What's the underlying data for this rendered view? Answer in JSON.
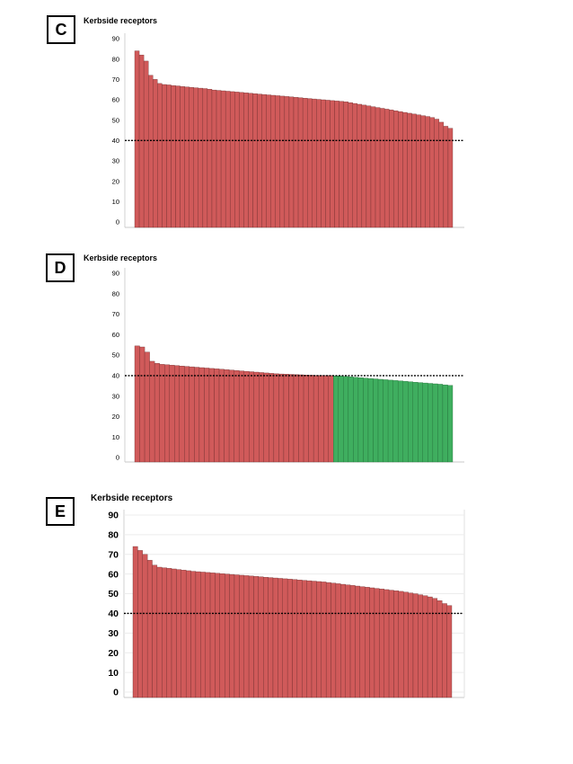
{
  "panels": [
    {
      "letter": "C",
      "title": "Kerbside receptors",
      "chart_data": {
        "type": "bar",
        "ylim": [
          0,
          90
        ],
        "yticks": [
          "90",
          "80",
          "70",
          "60",
          "50",
          "40",
          "30",
          "20",
          "10",
          "0"
        ],
        "threshold": 40,
        "grid": false,
        "colors": {
          "above": "#d05a5a",
          "below": "#3fae5f"
        },
        "values": [
          84,
          82,
          79,
          72,
          70,
          68,
          67.5,
          67.3,
          67,
          66.8,
          66.5,
          66.3,
          66.1,
          65.9,
          65.7,
          65.5,
          65.2,
          64.8,
          64.6,
          64.4,
          64.2,
          64,
          63.8,
          63.6,
          63.4,
          63.2,
          63,
          62.8,
          62.6,
          62.4,
          62.2,
          62,
          61.8,
          61.6,
          61.4,
          61.2,
          61,
          60.8,
          60.6,
          60.4,
          60.2,
          60,
          59.8,
          59.6,
          59.4,
          59.2,
          59,
          58.6,
          58.2,
          57.8,
          57.4,
          57,
          56.6,
          56.2,
          55.8,
          55.4,
          55,
          54.6,
          54.2,
          53.8,
          53.4,
          53,
          52.6,
          52.2,
          51.8,
          51.3,
          50.5,
          49,
          47,
          46
        ]
      }
    },
    {
      "letter": "D",
      "title": "Kerbside receptors",
      "chart_data": {
        "type": "bar",
        "ylim": [
          0,
          90
        ],
        "yticks": [
          "90",
          "80",
          "70",
          "60",
          "50",
          "40",
          "30",
          "20",
          "10",
          "0"
        ],
        "threshold": 40,
        "grid": false,
        "colors": {
          "above": "#d05a5a",
          "below": "#3fae5f"
        },
        "values": [
          54.5,
          54,
          51.5,
          47,
          46,
          45.5,
          45.3,
          45.1,
          44.9,
          44.7,
          44.5,
          44.3,
          44.1,
          43.9,
          43.7,
          43.5,
          43.3,
          43.1,
          42.9,
          42.7,
          42.5,
          42.3,
          42.1,
          41.9,
          41.7,
          41.5,
          41.3,
          41.1,
          40.9,
          40.8,
          40.7,
          40.6,
          40.5,
          40.4,
          40.3,
          40.2,
          40.1,
          40.05,
          40.02,
          40.01,
          39.9,
          39.8,
          39.6,
          39.4,
          39.2,
          39,
          38.8,
          38.6,
          38.4,
          38.2,
          38,
          37.8,
          37.6,
          37.4,
          37.2,
          37,
          36.8,
          36.6,
          36.4,
          36.2,
          36,
          35.8,
          35.5,
          35.2
        ]
      }
    },
    {
      "letter": "E",
      "title": "Kerbside receptors",
      "chart_data": {
        "type": "bar",
        "ylim": [
          0,
          90
        ],
        "yticks": [
          "90",
          "80",
          "70",
          "60",
          "50",
          "40",
          "30",
          "20",
          "10",
          "0"
        ],
        "threshold": 40,
        "grid": true,
        "colors": {
          "above": "#d05a5a",
          "below": "#3fae5f"
        },
        "values": [
          74,
          72,
          70,
          67,
          64.5,
          63.5,
          63.2,
          62.9,
          62.6,
          62.3,
          62,
          61.7,
          61.4,
          61.2,
          61,
          60.8,
          60.6,
          60.4,
          60.2,
          60,
          59.8,
          59.6,
          59.4,
          59.2,
          59,
          58.8,
          58.6,
          58.4,
          58.2,
          58,
          57.8,
          57.6,
          57.4,
          57.2,
          57,
          56.8,
          56.6,
          56.4,
          56.2,
          56,
          55.7,
          55.4,
          55.1,
          54.8,
          54.5,
          54.2,
          53.9,
          53.6,
          53.3,
          53,
          52.7,
          52.4,
          52.1,
          51.8,
          51.5,
          51.2,
          50.8,
          50.4,
          50,
          49.5,
          49,
          48.4,
          47.6,
          46.5,
          45,
          44
        ]
      }
    }
  ]
}
